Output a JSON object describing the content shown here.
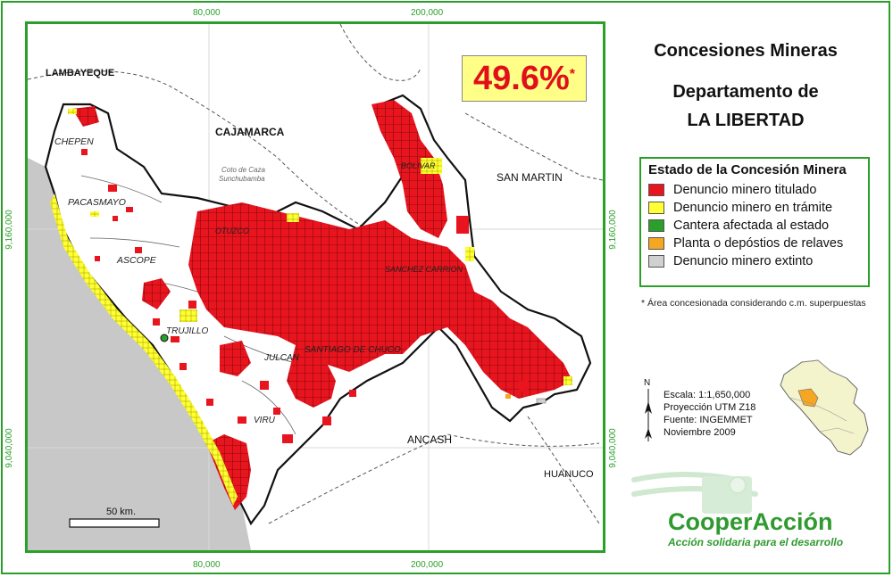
{
  "title": {
    "line1": "Concesiones Mineras",
    "line2": "Departamento de",
    "line3": "LA LIBERTAD"
  },
  "percentage": {
    "value": "49.6%",
    "asterisk": "*"
  },
  "legend": {
    "title": "Estado de la Concesión Minera",
    "items": [
      {
        "label": "Denuncio minero titulado",
        "color": "#e8141e"
      },
      {
        "label": "Denuncio minero en trámite",
        "color": "#ffff33"
      },
      {
        "label": "Cantera afectada al estado",
        "color": "#2aa02a"
      },
      {
        "label": "Planta o depóstios de relaves",
        "color": "#f5a623"
      },
      {
        "label": "Denuncio minero extinto",
        "color": "#d0d0d0"
      }
    ]
  },
  "note": "* Área concesionada considerando c.m. superpuestas",
  "meta": {
    "north": "N",
    "scale": "Escala: 1:1,650,000",
    "projection": "Proyección UTM Z18",
    "source": "Fuente: INGEMMET",
    "date": "Noviembre 2009"
  },
  "brand": {
    "name": "CooperAcción",
    "tagline": "Acción solidaria para el desarrollo",
    "color": "#2f9a2f"
  },
  "grid": {
    "x_labels": [
      "80,000",
      "200,000"
    ],
    "y_labels": [
      "9,160,000",
      "9,040,000"
    ]
  },
  "scalebar": "50 km.",
  "regions": {
    "neighbors": [
      "LAMBAYEQUE",
      "CAJAMARCA",
      "SAN MARTIN",
      "ANCASH",
      "HUANUCO"
    ],
    "provinces": [
      "CHEPEN",
      "PACASMAYO",
      "ASCOPE",
      "TRUJILLO",
      "JULCAN",
      "VIRU",
      "SANTIAGO DE CHUCO",
      "BOLIVAR",
      "SANCHEZ CARRION",
      "OTUZCO"
    ],
    "protected_area": [
      "Coto de Caza",
      "Sunchubamba"
    ]
  },
  "colors": {
    "frame": "#2aa02a",
    "titled": "#e8141e",
    "pending": "#ffff33",
    "ocean": "#c8c8c8"
  }
}
